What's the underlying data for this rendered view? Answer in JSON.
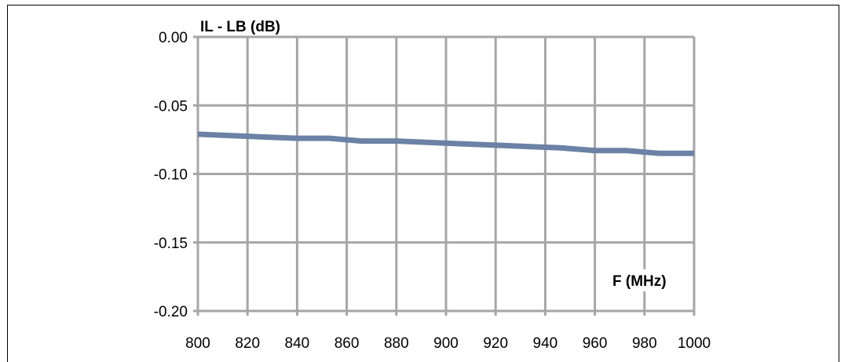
{
  "chart_data": {
    "type": "line",
    "ylabel": "IL - LB (dB)",
    "xlabel": "F (MHz)",
    "xlim": [
      800,
      1000
    ],
    "ylim": [
      -0.2,
      0.0
    ],
    "x_ticks": [
      "800",
      "820",
      "840",
      "860",
      "880",
      "900",
      "920",
      "940",
      "960",
      "980",
      "1000"
    ],
    "y_ticks": [
      "0.00",
      "-0.05",
      "-0.10",
      "-0.15",
      "-0.20"
    ],
    "x_tick_values": [
      800,
      820,
      840,
      860,
      880,
      900,
      920,
      940,
      960,
      980,
      1000
    ],
    "y_tick_values": [
      0.0,
      -0.05,
      -0.1,
      -0.15,
      -0.2
    ],
    "grid": true,
    "series": [
      {
        "color": "#6b82a6",
        "x": [
          800,
          813,
          826,
          840,
          853,
          866,
          880,
          893,
          906,
          920,
          933,
          946,
          960,
          973,
          986,
          1000
        ],
        "y": [
          -0.071,
          -0.072,
          -0.073,
          -0.074,
          -0.074,
          -0.076,
          -0.076,
          -0.077,
          -0.078,
          -0.079,
          -0.08,
          -0.081,
          -0.083,
          -0.083,
          -0.085,
          -0.085
        ]
      }
    ]
  }
}
